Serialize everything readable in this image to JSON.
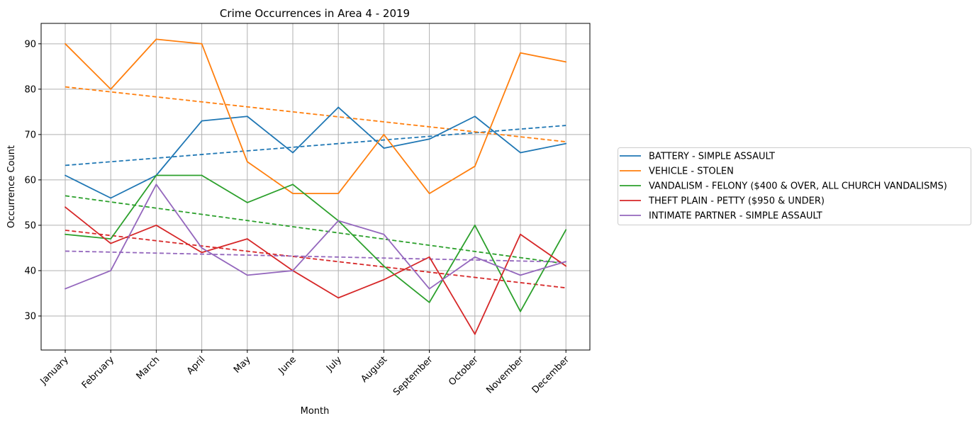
{
  "chart_data": {
    "type": "line",
    "title": "Crime Occurrences in Area 4 - 2019",
    "xlabel": "Month",
    "ylabel": "Occurrence Count",
    "categories": [
      "January",
      "February",
      "March",
      "April",
      "May",
      "June",
      "July",
      "August",
      "September",
      "October",
      "November",
      "December"
    ],
    "ylim": [
      22.5,
      94.5
    ],
    "yticks": [
      30,
      40,
      50,
      60,
      70,
      80,
      90
    ],
    "grid": true,
    "legend_position": "right",
    "series": [
      {
        "name": "BATTERY - SIMPLE ASSAULT",
        "color": "#1f77b4",
        "values": [
          61,
          56,
          61,
          73,
          74,
          66,
          76,
          67,
          69,
          74,
          66,
          68
        ],
        "trend": [
          63.2,
          72.0
        ]
      },
      {
        "name": "VEHICLE - STOLEN",
        "color": "#ff7f0e",
        "values": [
          90,
          80,
          91,
          90,
          64,
          57,
          57,
          70,
          57,
          63,
          88,
          86
        ],
        "trend": [
          80.5,
          68.4
        ]
      },
      {
        "name": "VANDALISM - FELONY ($400 & OVER, ALL CHURCH VANDALISMS)",
        "color": "#2ca02c",
        "values": [
          48,
          47,
          61,
          61,
          55,
          59,
          51,
          41,
          33,
          50,
          31,
          49
        ],
        "trend": [
          56.5,
          41.5
        ]
      },
      {
        "name": "THEFT PLAIN - PETTY ($950 & UNDER)",
        "color": "#d62728",
        "values": [
          54,
          46,
          50,
          44,
          47,
          40,
          34,
          38,
          43,
          26,
          48,
          41
        ],
        "trend": [
          48.9,
          36.2
        ]
      },
      {
        "name": "INTIMATE PARTNER - SIMPLE ASSAULT",
        "color": "#9467bd",
        "values": [
          36,
          40,
          59,
          45,
          39,
          40,
          51,
          48,
          36,
          43,
          39,
          42
        ],
        "trend": [
          44.3,
          41.9
        ]
      }
    ]
  }
}
